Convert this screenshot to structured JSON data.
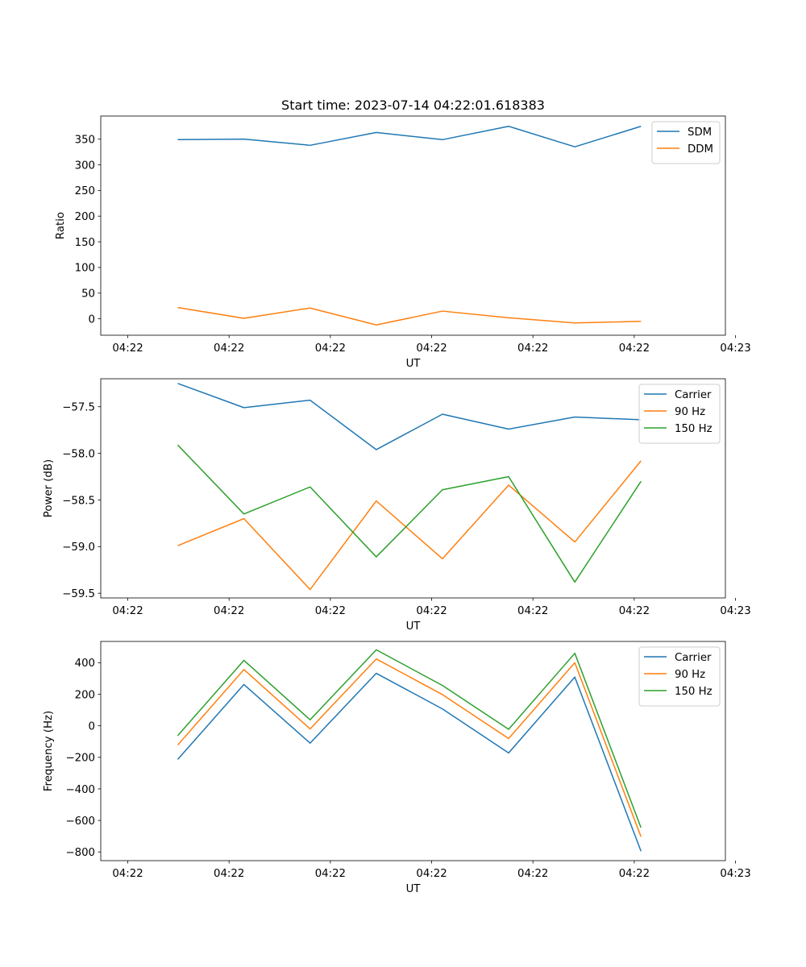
{
  "title": "Start time: 2023-07-14 04:22:01.618383",
  "chart_data": [
    {
      "type": "line",
      "ylabel": "Ratio",
      "xlabel": "UT",
      "xlim": [
        -0.4,
        8.85
      ],
      "ylim": [
        -32,
        395
      ],
      "x_ticks": [
        0,
        1.5,
        3,
        4.5,
        6,
        7.5,
        9
      ],
      "x_tick_labels": [
        "04:22",
        "04:22",
        "04:22",
        "04:22",
        "04:22",
        "04:22",
        "04:23"
      ],
      "y_ticks": [
        0,
        50,
        100,
        150,
        200,
        250,
        300,
        350
      ],
      "y_tick_labels": [
        "0",
        "50",
        "100",
        "150",
        "200",
        "250",
        "300",
        "350"
      ],
      "legend_position": "top-right",
      "series": [
        {
          "name": "SDM",
          "color": "#1f77b4",
          "x": [
            0.74,
            1.72,
            2.7,
            3.68,
            4.66,
            5.64,
            6.62,
            7.6
          ],
          "values": [
            349,
            350,
            338,
            363,
            349,
            375,
            335,
            375
          ]
        },
        {
          "name": "DDM",
          "color": "#ff7f0e",
          "x": [
            0.74,
            1.72,
            2.7,
            3.68,
            4.66,
            5.64,
            6.62,
            7.6
          ],
          "values": [
            22,
            1,
            21,
            -12,
            15,
            2,
            -8,
            -5
          ]
        }
      ]
    },
    {
      "type": "line",
      "ylabel": "Power (dB)",
      "xlabel": "UT",
      "xlim": [
        -0.4,
        8.85
      ],
      "ylim": [
        -59.55,
        -57.2
      ],
      "x_ticks": [
        0,
        1.5,
        3,
        4.5,
        6,
        7.5,
        9
      ],
      "x_tick_labels": [
        "04:22",
        "04:22",
        "04:22",
        "04:22",
        "04:22",
        "04:22",
        "04:23"
      ],
      "y_ticks": [
        -59.5,
        -59.0,
        -58.5,
        -58.0,
        -57.5
      ],
      "y_tick_labels": [
        "−59.5",
        "−59.0",
        "−58.5",
        "−58.0",
        "−57.5"
      ],
      "legend_position": "top-right",
      "series": [
        {
          "name": "Carrier",
          "color": "#1f77b4",
          "x": [
            0.74,
            1.72,
            2.7,
            3.68,
            4.66,
            5.64,
            6.62,
            7.6
          ],
          "values": [
            -57.25,
            -57.51,
            -57.43,
            -57.96,
            -57.58,
            -57.74,
            -57.61,
            -57.64
          ]
        },
        {
          "name": "90 Hz",
          "color": "#ff7f0e",
          "x": [
            0.74,
            1.72,
            2.7,
            3.68,
            4.66,
            5.64,
            6.62,
            7.6
          ],
          "values": [
            -58.99,
            -58.7,
            -59.46,
            -58.51,
            -59.13,
            -58.34,
            -58.95,
            -58.08
          ]
        },
        {
          "name": "150 Hz",
          "color": "#2ca02c",
          "x": [
            0.74,
            1.72,
            2.7,
            3.68,
            4.66,
            5.64,
            6.62,
            7.6
          ],
          "values": [
            -57.91,
            -58.65,
            -58.36,
            -59.11,
            -58.39,
            -58.25,
            -59.38,
            -58.3
          ]
        }
      ]
    },
    {
      "type": "line",
      "ylabel": "Frequency (Hz)",
      "xlabel": "UT",
      "xlim": [
        -0.4,
        8.85
      ],
      "ylim": [
        -855,
        535
      ],
      "x_ticks": [
        0,
        1.5,
        3,
        4.5,
        6,
        7.5,
        9
      ],
      "x_tick_labels": [
        "04:22",
        "04:22",
        "04:22",
        "04:22",
        "04:22",
        "04:22",
        "04:23"
      ],
      "y_ticks": [
        -800,
        -600,
        -400,
        -200,
        0,
        200,
        400
      ],
      "y_tick_labels": [
        "−800",
        "−600",
        "−400",
        "−200",
        "0",
        "200",
        "400"
      ],
      "legend_position": "top-right",
      "series": [
        {
          "name": "Carrier",
          "color": "#1f77b4",
          "x": [
            0.74,
            1.72,
            2.7,
            3.68,
            4.66,
            5.64,
            6.62,
            7.6
          ],
          "values": [
            -213,
            262,
            -110,
            333,
            107,
            -172,
            309,
            -795
          ]
        },
        {
          "name": "90 Hz",
          "color": "#ff7f0e",
          "x": [
            0.74,
            1.72,
            2.7,
            3.68,
            4.66,
            5.64,
            6.62,
            7.6
          ],
          "values": [
            -122,
            357,
            -20,
            424,
            198,
            -81,
            400,
            -703
          ]
        },
        {
          "name": "150 Hz",
          "color": "#2ca02c",
          "x": [
            0.74,
            1.72,
            2.7,
            3.68,
            4.66,
            5.64,
            6.62,
            7.6
          ],
          "values": [
            -62,
            415,
            38,
            482,
            256,
            -22,
            460,
            -646
          ]
        }
      ]
    }
  ]
}
